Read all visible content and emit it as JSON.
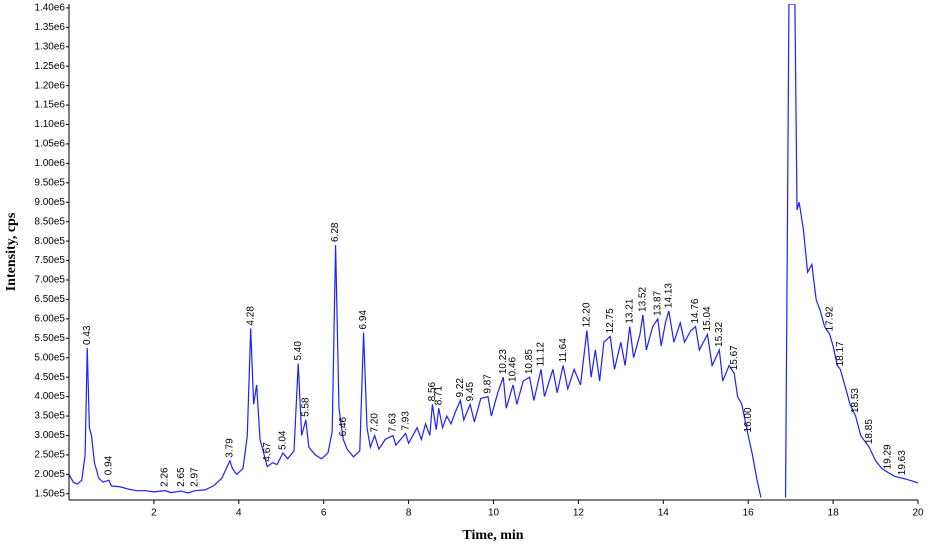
{
  "chart_data": {
    "type": "line",
    "xlabel": "Time, min",
    "ylabel": "Intensity, cps",
    "color": "#1f1fff",
    "xlim": [
      0,
      20
    ],
    "xticks": [
      2,
      4,
      6,
      8,
      10,
      12,
      14,
      16,
      18,
      20
    ],
    "ylim": [
      134000,
      1410000
    ],
    "yticks": [
      {
        "value": 150000,
        "label": "1.50e5"
      },
      {
        "value": 200000,
        "label": "2.00e5"
      },
      {
        "value": 250000,
        "label": "2.50e5"
      },
      {
        "value": 300000,
        "label": "3.00e5"
      },
      {
        "value": 350000,
        "label": "3.50e5"
      },
      {
        "value": 400000,
        "label": "4.00e5"
      },
      {
        "value": 450000,
        "label": "4.50e5"
      },
      {
        "value": 500000,
        "label": "5.00e5"
      },
      {
        "value": 550000,
        "label": "5.50e5"
      },
      {
        "value": 600000,
        "label": "6.00e5"
      },
      {
        "value": 650000,
        "label": "6.50e5"
      },
      {
        "value": 700000,
        "label": "7.00e5"
      },
      {
        "value": 750000,
        "label": "7.50e5"
      },
      {
        "value": 800000,
        "label": "8.00e5"
      },
      {
        "value": 850000,
        "label": "8.50e5"
      },
      {
        "value": 900000,
        "label": "9.00e5"
      },
      {
        "value": 950000,
        "label": "9.50e5"
      },
      {
        "value": 1000000,
        "label": "1.00e6"
      },
      {
        "value": 1050000,
        "label": "1.05e6"
      },
      {
        "value": 1100000,
        "label": "1.10e6"
      },
      {
        "value": 1150000,
        "label": "1.15e6"
      },
      {
        "value": 1200000,
        "label": "1.20e6"
      },
      {
        "value": 1250000,
        "label": "1.25e6"
      },
      {
        "value": 1300000,
        "label": "1.30e6"
      },
      {
        "value": 1350000,
        "label": "1.35e6"
      },
      {
        "value": 1400000,
        "label": "1.40e6"
      }
    ],
    "x": [
      0,
      0.1,
      0.2,
      0.3,
      0.38,
      0.43,
      0.48,
      0.53,
      0.6,
      0.7,
      0.8,
      0.94,
      1.0,
      1.2,
      1.4,
      1.6,
      1.8,
      2.0,
      2.26,
      2.4,
      2.65,
      2.8,
      2.97,
      3.2,
      3.4,
      3.6,
      3.79,
      3.85,
      3.95,
      4.1,
      4.2,
      4.28,
      4.35,
      4.42,
      4.5,
      4.67,
      4.8,
      4.9,
      5.04,
      5.15,
      5.3,
      5.4,
      5.48,
      5.58,
      5.65,
      5.8,
      5.95,
      6.1,
      6.2,
      6.28,
      6.36,
      6.46,
      6.55,
      6.7,
      6.85,
      6.94,
      7.02,
      7.1,
      7.2,
      7.3,
      7.45,
      7.63,
      7.7,
      7.93,
      8.0,
      8.2,
      8.3,
      8.4,
      8.5,
      8.56,
      8.65,
      8.71,
      8.8,
      8.9,
      9.0,
      9.1,
      9.22,
      9.3,
      9.45,
      9.55,
      9.7,
      9.87,
      9.95,
      10.1,
      10.23,
      10.3,
      10.46,
      10.55,
      10.7,
      10.85,
      10.95,
      11.12,
      11.2,
      11.4,
      11.5,
      11.64,
      11.75,
      11.9,
      12.05,
      12.2,
      12.3,
      12.4,
      12.5,
      12.6,
      12.75,
      12.85,
      13.0,
      13.1,
      13.21,
      13.3,
      13.45,
      13.52,
      13.6,
      13.75,
      13.87,
      13.95,
      14.05,
      14.13,
      14.25,
      14.4,
      14.5,
      14.65,
      14.76,
      14.85,
      15.04,
      15.15,
      15.32,
      15.4,
      15.55,
      15.67,
      15.75,
      15.85,
      16.0,
      16.1,
      16.2,
      16.3,
      16.6,
      16.88,
      16.96,
      17.1,
      17.15,
      17.2,
      17.3,
      17.4,
      17.5,
      17.6,
      17.7,
      17.8,
      17.92,
      18.0,
      18.1,
      18.17,
      18.3,
      18.4,
      18.53,
      18.65,
      18.85,
      19.0,
      19.15,
      19.29,
      19.45,
      19.63,
      19.8,
      20
    ],
    "values": [
      200000,
      180000,
      175000,
      185000,
      250000,
      525000,
      320000,
      300000,
      230000,
      190000,
      180000,
      185000,
      170000,
      168000,
      162000,
      158000,
      158000,
      155000,
      158000,
      153000,
      157000,
      152000,
      158000,
      160000,
      170000,
      190000,
      235000,
      215000,
      200000,
      215000,
      300000,
      575000,
      380000,
      430000,
      290000,
      220000,
      230000,
      225000,
      255000,
      240000,
      260000,
      485000,
      300000,
      340000,
      270000,
      250000,
      240000,
      255000,
      310000,
      790000,
      370000,
      290000,
      265000,
      245000,
      260000,
      565000,
      320000,
      270000,
      300000,
      265000,
      290000,
      300000,
      275000,
      305000,
      280000,
      320000,
      290000,
      330000,
      300000,
      380000,
      315000,
      370000,
      320000,
      350000,
      330000,
      360000,
      390000,
      340000,
      380000,
      335000,
      395000,
      400000,
      350000,
      410000,
      450000,
      370000,
      430000,
      380000,
      440000,
      450000,
      390000,
      470000,
      400000,
      470000,
      410000,
      480000,
      420000,
      470000,
      430000,
      570000,
      450000,
      520000,
      440000,
      540000,
      555000,
      470000,
      540000,
      480000,
      580000,
      500000,
      560000,
      610000,
      520000,
      580000,
      600000,
      530000,
      590000,
      620000,
      540000,
      590000,
      540000,
      570000,
      580000,
      520000,
      560000,
      480000,
      520000,
      440000,
      480000,
      460000,
      400000,
      380000,
      300000,
      250000,
      190000,
      140000,
      null,
      140000,
      1410000,
      1410000,
      880000,
      900000,
      830000,
      720000,
      740000,
      650000,
      620000,
      580000,
      560000,
      530000,
      480000,
      470000,
      420000,
      380000,
      350000,
      300000,
      270000,
      235000,
      215000,
      205000,
      195000,
      190000,
      185000,
      178000
    ],
    "peak_labels": [
      {
        "x": 0.43,
        "y": 525000,
        "label": "0.43"
      },
      {
        "x": 0.94,
        "y": 190000,
        "label": "0.94"
      },
      {
        "x": 2.26,
        "y": 160000,
        "label": "2.26"
      },
      {
        "x": 2.65,
        "y": 160000,
        "label": "2.65"
      },
      {
        "x": 2.97,
        "y": 160000,
        "label": "2.97"
      },
      {
        "x": 3.79,
        "y": 235000,
        "label": "3.79"
      },
      {
        "x": 4.28,
        "y": 575000,
        "label": "4.28"
      },
      {
        "x": 4.67,
        "y": 225000,
        "label": "4.67"
      },
      {
        "x": 5.04,
        "y": 255000,
        "label": "5.04"
      },
      {
        "x": 5.4,
        "y": 485000,
        "label": "5.40"
      },
      {
        "x": 5.58,
        "y": 340000,
        "label": "5.58"
      },
      {
        "x": 6.28,
        "y": 790000,
        "label": "6.28"
      },
      {
        "x": 6.46,
        "y": 290000,
        "label": "6.46"
      },
      {
        "x": 6.94,
        "y": 565000,
        "label": "6.94"
      },
      {
        "x": 7.2,
        "y": 300000,
        "label": "7.20"
      },
      {
        "x": 7.63,
        "y": 300000,
        "label": "7.63"
      },
      {
        "x": 7.93,
        "y": 305000,
        "label": "7.93"
      },
      {
        "x": 8.56,
        "y": 380000,
        "label": "8.56"
      },
      {
        "x": 8.71,
        "y": 370000,
        "label": "8.71"
      },
      {
        "x": 9.22,
        "y": 390000,
        "label": "9.22"
      },
      {
        "x": 9.45,
        "y": 380000,
        "label": "9.45"
      },
      {
        "x": 9.87,
        "y": 400000,
        "label": "9.87"
      },
      {
        "x": 10.23,
        "y": 450000,
        "label": "10.23"
      },
      {
        "x": 10.46,
        "y": 430000,
        "label": "10.46"
      },
      {
        "x": 10.85,
        "y": 450000,
        "label": "10.85"
      },
      {
        "x": 11.12,
        "y": 470000,
        "label": "11.12"
      },
      {
        "x": 11.64,
        "y": 480000,
        "label": "11.64"
      },
      {
        "x": 12.2,
        "y": 570000,
        "label": "12.20"
      },
      {
        "x": 12.75,
        "y": 555000,
        "label": "12.75"
      },
      {
        "x": 13.21,
        "y": 580000,
        "label": "13.21"
      },
      {
        "x": 13.52,
        "y": 610000,
        "label": "13.52"
      },
      {
        "x": 13.87,
        "y": 600000,
        "label": "13.87"
      },
      {
        "x": 14.13,
        "y": 620000,
        "label": "14.13"
      },
      {
        "x": 14.76,
        "y": 580000,
        "label": "14.76"
      },
      {
        "x": 15.04,
        "y": 560000,
        "label": "15.04"
      },
      {
        "x": 15.32,
        "y": 520000,
        "label": "15.32"
      },
      {
        "x": 15.67,
        "y": 460000,
        "label": "15.67"
      },
      {
        "x": 16.0,
        "y": 300000,
        "label": "16.00"
      },
      {
        "x": 17.92,
        "y": 560000,
        "label": "17.92"
      },
      {
        "x": 18.17,
        "y": 470000,
        "label": "18.17"
      },
      {
        "x": 18.53,
        "y": 350000,
        "label": "18.53"
      },
      {
        "x": 18.85,
        "y": 270000,
        "label": "18.85"
      },
      {
        "x": 19.29,
        "y": 205000,
        "label": "19.29"
      },
      {
        "x": 19.63,
        "y": 190000,
        "label": "19.63"
      }
    ]
  }
}
